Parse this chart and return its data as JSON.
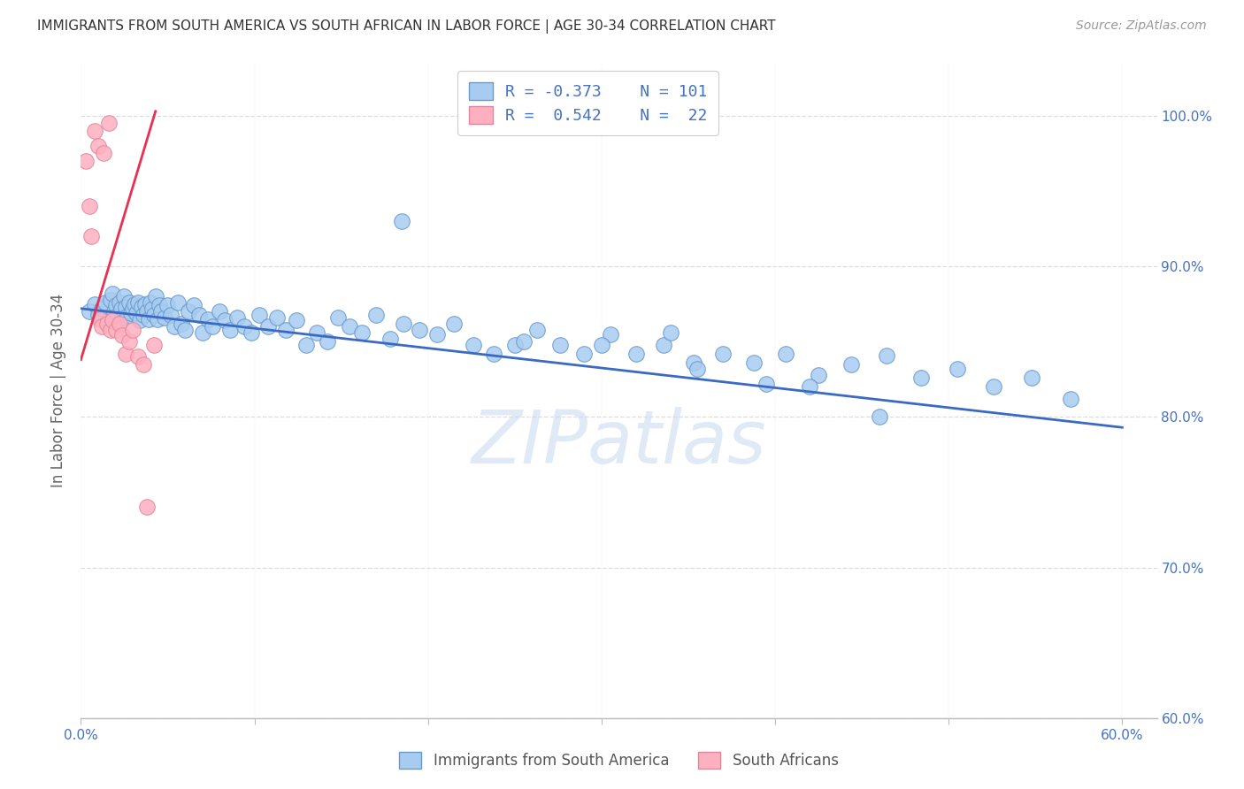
{
  "title": "IMMIGRANTS FROM SOUTH AMERICA VS SOUTH AFRICAN IN LABOR FORCE | AGE 30-34 CORRELATION CHART",
  "source": "Source: ZipAtlas.com",
  "ylabel": "In Labor Force | Age 30-34",
  "xlim": [
    0.0,
    0.62
  ],
  "ylim": [
    0.6,
    1.035
  ],
  "yticks": [
    0.6,
    0.7,
    0.8,
    0.9,
    1.0
  ],
  "ytick_labels_right": [
    "60.0%",
    "70.0%",
    "80.0%",
    "90.0%",
    "100.0%"
  ],
  "xticks": [
    0.0,
    0.1,
    0.2,
    0.3,
    0.4,
    0.5,
    0.6
  ],
  "xticklabels": [
    "0.0%",
    "",
    "",
    "",
    "",
    "",
    "60.0%"
  ],
  "blue_color": "#A8CCF0",
  "blue_edge": "#6699CC",
  "pink_color": "#FFB0C0",
  "pink_edge": "#DD8899",
  "trend_blue": "#3B6AC4",
  "trend_pink": "#E83050",
  "legend_blue_R": "-0.373",
  "legend_blue_N": "101",
  "legend_pink_R": " 0.542",
  "legend_pink_N": " 22",
  "legend_label_blue": "Immigrants from South America",
  "legend_label_pink": "South Africans",
  "watermark": "ZIPatlas",
  "watermark_color": "#C8D8F0",
  "grid_color": "#DDDDDD",
  "axis_color": "#4472C4",
  "blue_scatter_x": [
    0.005,
    0.008,
    0.01,
    0.012,
    0.014,
    0.016,
    0.017,
    0.018,
    0.019,
    0.02,
    0.021,
    0.022,
    0.023,
    0.024,
    0.025,
    0.026,
    0.027,
    0.028,
    0.029,
    0.03,
    0.031,
    0.032,
    0.033,
    0.034,
    0.035,
    0.036,
    0.037,
    0.038,
    0.039,
    0.04,
    0.041,
    0.042,
    0.043,
    0.044,
    0.045,
    0.046,
    0.048,
    0.05,
    0.052,
    0.054,
    0.056,
    0.058,
    0.06,
    0.062,
    0.065,
    0.068,
    0.07,
    0.073,
    0.076,
    0.08,
    0.083,
    0.086,
    0.09,
    0.094,
    0.098,
    0.103,
    0.108,
    0.113,
    0.118,
    0.124,
    0.13,
    0.136,
    0.142,
    0.148,
    0.155,
    0.162,
    0.17,
    0.178,
    0.186,
    0.195,
    0.205,
    0.215,
    0.226,
    0.238,
    0.25,
    0.263,
    0.276,
    0.29,
    0.305,
    0.32,
    0.336,
    0.353,
    0.37,
    0.388,
    0.406,
    0.425,
    0.444,
    0.464,
    0.484,
    0.505,
    0.526,
    0.548,
    0.57,
    0.3,
    0.42,
    0.46,
    0.34,
    0.395,
    0.355,
    0.255,
    0.185
  ],
  "blue_scatter_y": [
    0.87,
    0.875,
    0.868,
    0.872,
    0.876,
    0.865,
    0.878,
    0.882,
    0.87,
    0.874,
    0.868,
    0.876,
    0.872,
    0.866,
    0.88,
    0.873,
    0.867,
    0.876,
    0.869,
    0.872,
    0.875,
    0.869,
    0.876,
    0.864,
    0.873,
    0.868,
    0.875,
    0.87,
    0.865,
    0.876,
    0.872,
    0.868,
    0.88,
    0.865,
    0.874,
    0.87,
    0.866,
    0.874,
    0.868,
    0.86,
    0.876,
    0.862,
    0.858,
    0.87,
    0.874,
    0.868,
    0.856,
    0.865,
    0.86,
    0.87,
    0.864,
    0.858,
    0.866,
    0.86,
    0.856,
    0.868,
    0.86,
    0.866,
    0.858,
    0.864,
    0.848,
    0.856,
    0.85,
    0.866,
    0.86,
    0.856,
    0.868,
    0.852,
    0.862,
    0.858,
    0.855,
    0.862,
    0.848,
    0.842,
    0.848,
    0.858,
    0.848,
    0.842,
    0.855,
    0.842,
    0.848,
    0.836,
    0.842,
    0.836,
    0.842,
    0.828,
    0.835,
    0.841,
    0.826,
    0.832,
    0.82,
    0.826,
    0.812,
    0.848,
    0.82,
    0.8,
    0.856,
    0.822,
    0.832,
    0.85,
    0.93
  ],
  "pink_scatter_x": [
    0.003,
    0.005,
    0.006,
    0.008,
    0.01,
    0.011,
    0.012,
    0.013,
    0.015,
    0.016,
    0.017,
    0.018,
    0.02,
    0.022,
    0.024,
    0.026,
    0.028,
    0.03,
    0.033,
    0.036,
    0.038,
    0.042
  ],
  "pink_scatter_y": [
    0.97,
    0.94,
    0.92,
    0.99,
    0.98,
    0.865,
    0.86,
    0.975,
    0.862,
    0.995,
    0.858,
    0.864,
    0.858,
    0.862,
    0.854,
    0.842,
    0.85,
    0.858,
    0.84,
    0.835,
    0.74,
    0.848
  ]
}
